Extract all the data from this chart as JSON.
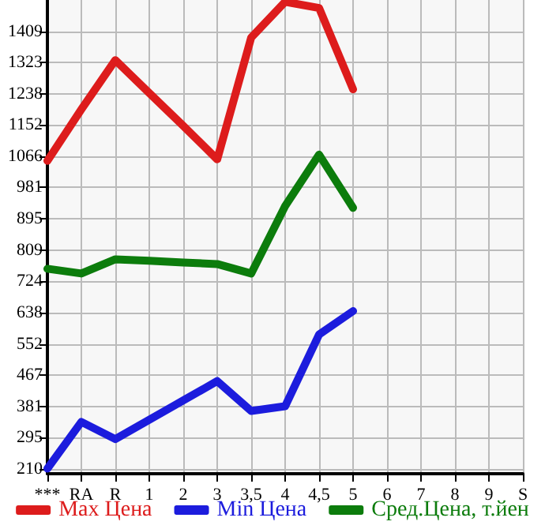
{
  "chart_data": {
    "type": "line",
    "categories": [
      "***",
      "RA",
      "R",
      "1",
      "2",
      "3",
      "3,5",
      "4",
      "4,5",
      "5",
      "6",
      "7",
      "8",
      "9",
      "S"
    ],
    "series": [
      {
        "name": "Max Цена",
        "color": "#dd1c1c",
        "values": [
          1054,
          1195,
          1330,
          1240,
          1150,
          1058,
          1392,
          1490,
          1473,
          1250,
          null,
          null,
          null,
          null,
          null
        ]
      },
      {
        "name": "Min Цена",
        "color": "#1c1cdd",
        "values": [
          210,
          338,
          291,
          344,
          397,
          450,
          368,
          381,
          578,
          642,
          null,
          null,
          null,
          null,
          null
        ]
      },
      {
        "name": "Сред.Цена, т.йен",
        "color": "#0c7c0c",
        "values": [
          758,
          745,
          784,
          780,
          775,
          771,
          745,
          930,
          1071,
          925,
          null,
          null,
          null,
          null,
          null
        ]
      }
    ],
    "ylim": [
      196,
      1495
    ],
    "yticks": [
      210,
      295,
      381,
      467,
      552,
      638,
      724,
      809,
      895,
      981,
      1066,
      1152,
      1238,
      1323,
      1409
    ],
    "grid": true,
    "legend": "bottom",
    "marker": "none",
    "line_style": "solid"
  }
}
